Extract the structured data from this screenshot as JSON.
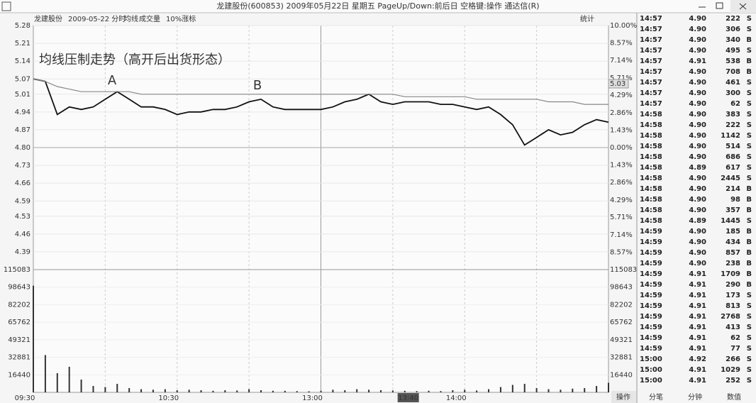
{
  "window": {
    "title": "龙建股份(600853) 2009年05月22日 星期五 PageUp/Down:前后日 空格键:操作 通达信(R)",
    "header": [
      "龙建股份",
      "2009-05-22 分时",
      "均线",
      "成交量",
      "10%涨标"
    ],
    "stat": "统计",
    "tabs": [
      "操作",
      "分笔",
      "分钟",
      "数值"
    ]
  },
  "chart_data": {
    "type": "line",
    "annotations": [
      "均线压制走势（高开后出货形态）",
      "A",
      "B",
      "5.03"
    ],
    "x": [
      "09:30",
      "09:35",
      "09:40",
      "09:45",
      "09:50",
      "09:55",
      "10:00",
      "10:05",
      "10:10",
      "10:15",
      "10:20",
      "10:25",
      "10:30",
      "10:35",
      "10:40",
      "10:45",
      "10:50",
      "10:55",
      "11:00",
      "11:05",
      "11:10",
      "11:15",
      "11:20",
      "11:25",
      "11:30",
      "13:05",
      "13:10",
      "13:15",
      "13:20",
      "13:25",
      "13:30",
      "13:35",
      "13:40",
      "13:45",
      "13:50",
      "13:55",
      "14:00",
      "14:05",
      "14:10",
      "14:15",
      "14:20",
      "14:25",
      "14:30",
      "14:35",
      "14:40",
      "14:45",
      "14:50",
      "14:55",
      "15:00"
    ],
    "xticks": [
      "09:30",
      "10:30",
      "13:00",
      "13:40",
      "14:00"
    ],
    "cursor": "13:40",
    "series": [
      {
        "color": "#111111",
        "values": [
          5.07,
          5.06,
          4.93,
          4.96,
          4.95,
          4.96,
          4.99,
          5.02,
          4.99,
          4.96,
          4.96,
          4.95,
          4.93,
          4.94,
          4.94,
          4.95,
          4.95,
          4.96,
          4.98,
          4.99,
          4.96,
          4.95,
          4.95,
          4.95,
          4.95,
          4.96,
          4.98,
          4.99,
          5.01,
          4.98,
          4.97,
          4.98,
          4.98,
          4.98,
          4.97,
          4.97,
          4.96,
          4.95,
          4.96,
          4.93,
          4.89,
          4.81,
          4.84,
          4.87,
          4.85,
          4.86,
          4.89,
          4.91,
          4.9
        ]
      },
      {
        "name": "均线",
        "color": "#888888",
        "values": [
          5.07,
          5.06,
          5.04,
          5.03,
          5.02,
          5.02,
          5.02,
          5.02,
          5.02,
          5.01,
          5.01,
          5.01,
          5.01,
          5.01,
          5.01,
          5.01,
          5.01,
          5.01,
          5.01,
          5.01,
          5.01,
          5.01,
          5.01,
          5.01,
          5.01,
          5.01,
          5.01,
          5.01,
          5.01,
          5.01,
          5.01,
          5.0,
          5.0,
          5.0,
          5.0,
          5.0,
          5.0,
          4.99,
          4.99,
          4.99,
          4.99,
          4.99,
          4.99,
          4.98,
          4.98,
          4.98,
          4.97,
          4.97,
          4.97
        ]
      }
    ],
    "ylim": [
      4.32,
      5.28
    ],
    "yticks": [
      5.28,
      5.21,
      5.14,
      5.07,
      5.01,
      4.94,
      4.87,
      {
        "value": 4.8,
        "label": "4.80"
      },
      4.73,
      4.66,
      4.59,
      4.53,
      4.46,
      4.39
    ],
    "y2lim": [
      -10,
      10
    ],
    "y2ticks": [
      {
        "value": 10,
        "label": "10.00%"
      },
      {
        "value": 8.57,
        "label": "8.57%"
      },
      {
        "value": 7.14,
        "label": "7.14%"
      },
      {
        "value": 5.71,
        "label": "5.71%"
      },
      {
        "value": 4.29,
        "label": "4.29%"
      },
      {
        "value": 2.86,
        "label": "2.86%"
      },
      {
        "value": 1.43,
        "label": "1.43%"
      },
      {
        "value": 0,
        "label": "0.00%"
      },
      {
        "value": -1.43,
        "label": "1.43%"
      },
      {
        "value": -2.86,
        "label": "2.86%"
      },
      {
        "value": -4.29,
        "label": "4.29%"
      },
      {
        "value": -5.71,
        "label": "5.71%"
      },
      {
        "value": -7.14,
        "label": "7.14%"
      },
      {
        "value": -8.57,
        "label": "8.57%"
      }
    ],
    "volume": {
      "name": "成交量",
      "color": "#333333",
      "values": [
        100000,
        35000,
        18000,
        24000,
        12000,
        6000,
        5000,
        8000,
        4000,
        3000,
        2500,
        3000,
        2000,
        2500,
        2000,
        1500,
        2000,
        1800,
        3000,
        2000,
        1500,
        1500,
        1200,
        1000,
        1500,
        2500,
        2000,
        3000,
        2500,
        2000,
        1800,
        1500,
        1200,
        1500,
        1200,
        2000,
        2500,
        1800,
        3000,
        5000,
        7000,
        8000,
        4000,
        3000,
        2500,
        3500,
        4000,
        6000,
        9000
      ],
      "ylim": [
        0,
        115083
      ],
      "yticks": [
        115083,
        98643,
        82202,
        65762,
        49321,
        32881,
        16440
      ]
    }
  },
  "trades": [
    [
      "14:57",
      "4.90",
      "222",
      "S"
    ],
    [
      "14:57",
      "4.90",
      "306",
      "S"
    ],
    [
      "14:57",
      "4.90",
      "340",
      "B"
    ],
    [
      "14:57",
      "4.90",
      "495",
      "S"
    ],
    [
      "14:57",
      "4.91",
      "538",
      "B"
    ],
    [
      "14:57",
      "4.90",
      "708",
      "B"
    ],
    [
      "14:57",
      "4.90",
      "461",
      "S"
    ],
    [
      "14:57",
      "4.90",
      "300",
      "S"
    ],
    [
      "14:57",
      "4.90",
      "62",
      "S"
    ],
    [
      "14:58",
      "4.90",
      "383",
      "S"
    ],
    [
      "14:58",
      "4.90",
      "222",
      "S"
    ],
    [
      "14:58",
      "4.90",
      "1142",
      "S"
    ],
    [
      "14:58",
      "4.90",
      "514",
      "S"
    ],
    [
      "14:58",
      "4.90",
      "686",
      "S"
    ],
    [
      "14:58",
      "4.89",
      "617",
      "S"
    ],
    [
      "14:58",
      "4.90",
      "2445",
      "S"
    ],
    [
      "14:58",
      "4.90",
      "214",
      "B"
    ],
    [
      "14:58",
      "4.90",
      "98",
      "B"
    ],
    [
      "14:58",
      "4.90",
      "357",
      "B"
    ],
    [
      "14:58",
      "4.89",
      "1445",
      "S"
    ],
    [
      "14:59",
      "4.90",
      "185",
      "B"
    ],
    [
      "14:59",
      "4.90",
      "434",
      "B"
    ],
    [
      "14:59",
      "4.90",
      "857",
      "B"
    ],
    [
      "14:59",
      "4.90",
      "238",
      "B"
    ],
    [
      "14:59",
      "4.91",
      "1709",
      "B"
    ],
    [
      "14:59",
      "4.91",
      "290",
      "B"
    ],
    [
      "14:59",
      "4.91",
      "173",
      "S"
    ],
    [
      "14:59",
      "4.91",
      "813",
      "S"
    ],
    [
      "14:59",
      "4.91",
      "2768",
      "S"
    ],
    [
      "14:59",
      "4.91",
      "413",
      "S"
    ],
    [
      "14:59",
      "4.91",
      "62",
      "S"
    ],
    [
      "14:59",
      "4.91",
      "77",
      "S"
    ],
    [
      "15:00",
      "4.92",
      "266",
      "S"
    ],
    [
      "15:00",
      "4.91",
      "1029",
      "S"
    ],
    [
      "15:00",
      "4.91",
      "252",
      "S"
    ]
  ]
}
